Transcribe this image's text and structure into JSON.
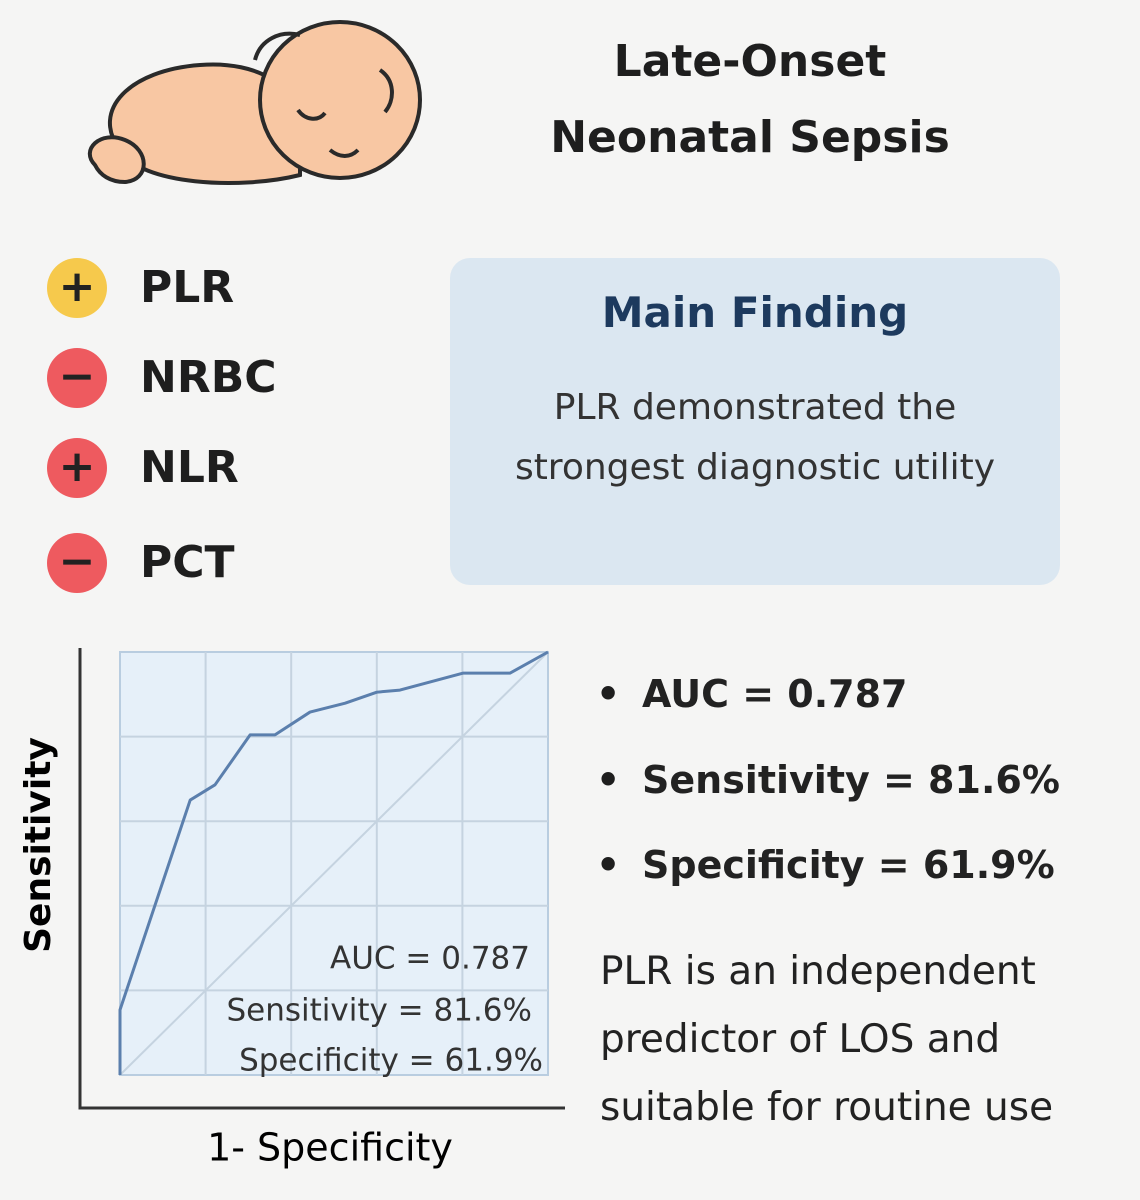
{
  "header": {
    "title_lines": [
      "Late-Onset",
      "Neonatal Sepsis"
    ]
  },
  "markers": [
    {
      "sign": "+",
      "label": "PLR",
      "color": "#f6c94c"
    },
    {
      "sign": "−",
      "label": "NRBC",
      "color": "#ee5a5f"
    },
    {
      "sign": "+",
      "label": "NLR",
      "color": "#ee5a5f"
    },
    {
      "sign": "−",
      "label": "PCT",
      "color": "#ee5a5f"
    }
  ],
  "main_finding": {
    "title": "Main Finding",
    "text": "PLR demonstrated the strongest diagnostic utility"
  },
  "chart_data": {
    "type": "line",
    "xlabel": "1- Specificity",
    "ylabel": "Sensitivity",
    "x": [
      0,
      0,
      0.164,
      0.222,
      0.304,
      0.362,
      0.444,
      0.526,
      0.6,
      0.654,
      0.801,
      0.911,
      1
    ],
    "values": [
      0,
      0.154,
      0.65,
      0.686,
      0.804,
      0.804,
      0.858,
      0.879,
      0.905,
      0.91,
      0.95,
      0.95,
      1
    ],
    "xlim": [
      0,
      1
    ],
    "ylim": [
      0,
      1
    ],
    "grid": true,
    "color": "#5b7fad",
    "annotations": [
      "AUC = 0.787",
      "Sensitivity = 81.6%",
      "Specificity = 61.9%"
    ]
  },
  "bullets": [
    "AUC = 0.787",
    "Sensitivity = 81.6%",
    "Specificity = 61.9%"
  ],
  "conclusion": "PLR is an independent predictor of LOS and suitable for routine use"
}
